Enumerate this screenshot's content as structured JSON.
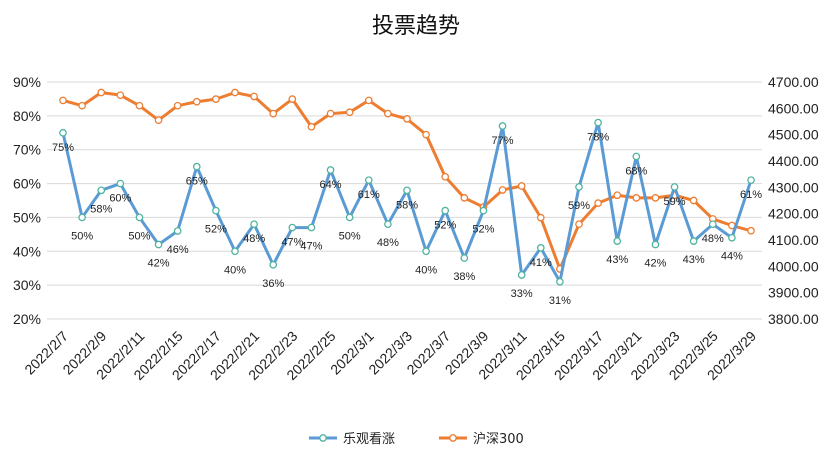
{
  "chart_data": {
    "type": "line",
    "title": "投票趋势",
    "x": [
      "2022/2/7",
      "2022/2/8",
      "2022/2/9",
      "2022/2/10",
      "2022/2/11",
      "2022/2/14",
      "2022/2/15",
      "2022/2/16",
      "2022/2/17",
      "2022/2/18",
      "2022/2/21",
      "2022/2/22",
      "2022/2/23",
      "2022/2/24",
      "2022/2/25",
      "2022/2/28",
      "2022/3/1",
      "2022/3/2",
      "2022/3/3",
      "2022/3/4",
      "2022/3/7",
      "2022/3/8",
      "2022/3/9",
      "2022/3/10",
      "2022/3/11",
      "2022/3/14",
      "2022/3/15",
      "2022/3/16",
      "2022/3/17",
      "2022/3/18",
      "2022/3/21",
      "2022/3/22",
      "2022/3/23",
      "2022/3/24",
      "2022/3/25",
      "2022/3/28",
      "2022/3/29"
    ],
    "x_tick_labels": [
      "2022/2/7",
      "2022/2/9",
      "2022/2/11",
      "2022/2/15",
      "2022/2/17",
      "2022/2/21",
      "2022/2/23",
      "2022/2/25",
      "2022/3/1",
      "2022/3/3",
      "2022/3/7",
      "2022/3/9",
      "2022/3/11",
      "2022/3/15",
      "2022/3/17",
      "2022/3/21",
      "2022/3/23",
      "2022/3/25",
      "2022/3/29"
    ],
    "y_left_ticks": [
      "20%",
      "30%",
      "40%",
      "50%",
      "60%",
      "70%",
      "80%",
      "90%"
    ],
    "y_left_range": [
      20,
      90
    ],
    "y_right_ticks": [
      "3800.00",
      "3900.00",
      "4000.00",
      "4100.00",
      "4200.00",
      "4300.00",
      "4400.00",
      "4500.00",
      "4600.00",
      "4700.00"
    ],
    "y_right_range": [
      3800,
      4700
    ],
    "series": [
      {
        "name": "乐观看涨",
        "axis": "left",
        "color": "#5B9BD5",
        "values": [
          75,
          50,
          58,
          60,
          50,
          42,
          46,
          65,
          52,
          40,
          48,
          36,
          47,
          47,
          64,
          50,
          61,
          48,
          58,
          40,
          52,
          38,
          52,
          77,
          33,
          41,
          31,
          59,
          78,
          43,
          68,
          42,
          59,
          43,
          48,
          44,
          61
        ],
        "labels": [
          "75%",
          "50%",
          "58%",
          "60%",
          "50%",
          "42%",
          "46%",
          "65%",
          "52%",
          "40%",
          "48%",
          "36%",
          "47%",
          "47%",
          "64%",
          "50%",
          "61%",
          "48%",
          "58%",
          "40%",
          "52%",
          "38%",
          "52%",
          "77%",
          "33%",
          "41%",
          "31%",
          "59%",
          "78%",
          "43%",
          "68%",
          "42%",
          "59%",
          "43%",
          "48%",
          "44%",
          "61%"
        ]
      },
      {
        "name": "沪深300",
        "axis": "right",
        "color": "#ED7D31",
        "values": [
          4630,
          4610,
          4660,
          4650,
          4610,
          4555,
          4610,
          4625,
          4635,
          4660,
          4645,
          4580,
          4635,
          4530,
          4580,
          4585,
          4630,
          4580,
          4560,
          4500,
          4340,
          4260,
          4225,
          4290,
          4305,
          4185,
          3990,
          4160,
          4240,
          4270,
          4260,
          4260,
          4270,
          4250,
          4180,
          4155,
          4135
        ]
      }
    ],
    "grid": true,
    "legend": "bottom"
  }
}
